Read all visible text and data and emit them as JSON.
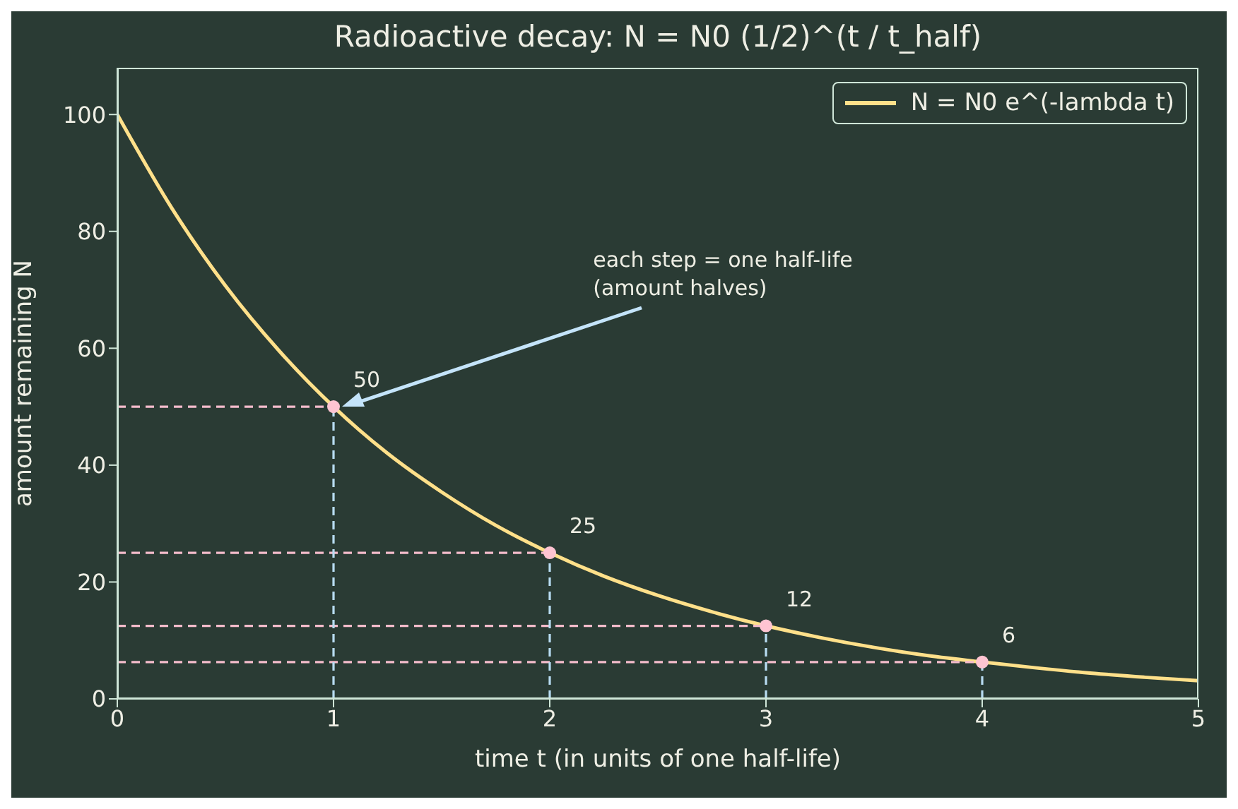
{
  "chart_data": {
    "type": "line",
    "title": "Radioactive decay: N = N0 (1/2)^(t / t_half)",
    "xlabel": "time  t   (in units of one half-life)",
    "ylabel": "amount remaining  N",
    "xlim": [
      0,
      5
    ],
    "xticks": [
      0,
      1,
      2,
      3,
      4,
      5
    ],
    "ylim": [
      0,
      108
    ],
    "yticks": [
      0,
      20,
      40,
      60,
      80,
      100
    ],
    "grid": false,
    "legend": "top right",
    "annotations": [
      "each step = one half-life\n(amount halves)"
    ],
    "series": [
      {
        "name": "N = N0 e^(-lambda t)",
        "color": "#ffe08a",
        "marker": "none",
        "line_style": "solid",
        "x": [
          0,
          0.25,
          0.5,
          0.75,
          1,
          1.25,
          1.5,
          1.75,
          2,
          2.25,
          2.5,
          2.75,
          3,
          3.25,
          3.5,
          3.75,
          4,
          4.25,
          4.5,
          4.75,
          5
        ],
        "values": [
          100,
          84.1,
          70.7,
          59.5,
          50,
          42,
          35.4,
          29.7,
          25,
          21,
          17.7,
          14.9,
          12.5,
          10.5,
          8.8,
          7.4,
          6.3,
          5.3,
          4.4,
          3.7,
          3.1
        ]
      },
      {
        "type": "line",
        "color": "#f4bccb",
        "marker": "none",
        "line_style": "dashed",
        "x": [
          0,
          1
        ],
        "values": [
          50,
          50
        ]
      },
      {
        "type": "line",
        "color": "#f4bccb",
        "marker": "none",
        "line_style": "dashed",
        "x": [
          0,
          2
        ],
        "values": [
          25,
          25
        ]
      },
      {
        "type": "line",
        "color": "#f4bccb",
        "marker": "none",
        "line_style": "dashed",
        "x": [
          0,
          3
        ],
        "values": [
          12.5,
          12.5
        ]
      },
      {
        "type": "line",
        "color": "#f4bccb",
        "marker": "none",
        "line_style": "dashed",
        "x": [
          0,
          4
        ],
        "values": [
          6.3,
          6.3
        ]
      },
      {
        "type": "line",
        "color": "#b8dcf2",
        "marker": "none",
        "line_style": "dashed",
        "x": [
          1,
          1
        ],
        "values": [
          0,
          50
        ]
      },
      {
        "type": "line",
        "color": "#b8dcf2",
        "marker": "none",
        "line_style": "dashed",
        "x": [
          2,
          2
        ],
        "values": [
          0,
          25
        ]
      },
      {
        "type": "line",
        "color": "#b8dcf2",
        "marker": "none",
        "line_style": "dashed",
        "x": [
          3,
          3
        ],
        "values": [
          0,
          12.5
        ]
      },
      {
        "type": "line",
        "color": "#b8dcf2",
        "marker": "none",
        "line_style": "dashed",
        "x": [
          4,
          4
        ],
        "values": [
          0,
          6.3
        ]
      },
      {
        "type": "scatter",
        "color": "#ffc4d2",
        "marker": "circle",
        "x": [
          1,
          2,
          3,
          4
        ],
        "values": [
          50,
          25,
          12.5,
          6.3
        ],
        "value_labels": [
          "50",
          "25",
          "12",
          "6"
        ]
      }
    ]
  }
}
